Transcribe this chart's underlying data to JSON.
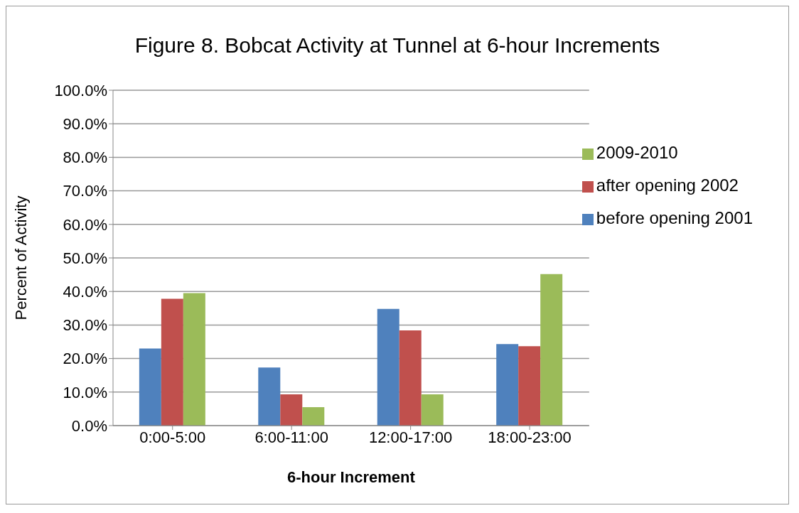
{
  "chart_data": {
    "type": "bar",
    "title": "Figure 8. Bobcat Activity at Tunnel at 6-hour Increments",
    "xlabel": "6-hour Increment",
    "ylabel": "Percent of Activity",
    "categories": [
      "0:00-5:00",
      "6:00-11:00",
      "12:00-17:00",
      "18:00-23:00"
    ],
    "series": [
      {
        "name": "before opening 2001",
        "color": "#4f81bd",
        "values": [
          23.0,
          17.3,
          34.8,
          24.3
        ]
      },
      {
        "name": "after opening 2002",
        "color": "#c0504d",
        "values": [
          37.8,
          9.3,
          28.4,
          23.7
        ]
      },
      {
        "name": "2009-2010",
        "color": "#9bbb59",
        "values": [
          39.5,
          5.5,
          9.3,
          45.2
        ]
      }
    ],
    "ylim": [
      0,
      100
    ],
    "yticks": [
      {
        "value": 0,
        "label": "0.0%"
      },
      {
        "value": 10,
        "label": "10.0%"
      },
      {
        "value": 20,
        "label": "20.0%"
      },
      {
        "value": 30,
        "label": "30.0%"
      },
      {
        "value": 40,
        "label": "40.0%"
      },
      {
        "value": 50,
        "label": "50.0%"
      },
      {
        "value": 60,
        "label": "60.0%"
      },
      {
        "value": 70,
        "label": "70.0%"
      },
      {
        "value": 80,
        "label": "80.0%"
      },
      {
        "value": 90,
        "label": "90.0%"
      },
      {
        "value": 100,
        "label": "100.0%"
      }
    ],
    "grid": "y",
    "legend": "top right"
  }
}
